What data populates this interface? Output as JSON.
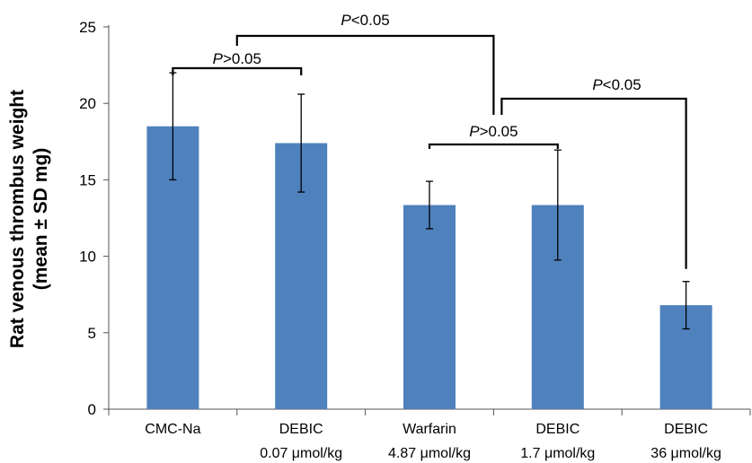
{
  "chart_data": {
    "type": "bar",
    "ylabel_line1": "Rat venous thrombus weight",
    "ylabel_line2": "(mean ± SD mg)",
    "ylim": [
      0,
      25
    ],
    "yticks": [
      0,
      5,
      10,
      15,
      20,
      25
    ],
    "grid": false,
    "bar_color": "#4f81bd",
    "categories": [
      {
        "line1": "CMC-Na",
        "line2": ""
      },
      {
        "line1": "DEBIC",
        "line2": "0.07 μmol/kg"
      },
      {
        "line1": "Warfarin",
        "line2": "4.87 μmol/kg"
      },
      {
        "line1": "DEBIC",
        "line2": "1.7 μmol/kg"
      },
      {
        "line1": "DEBIC",
        "line2": "36 μmol/kg"
      }
    ],
    "values": [
      18.5,
      17.4,
      13.35,
      13.35,
      6.8
    ],
    "errors": [
      3.5,
      3.2,
      1.55,
      3.6,
      1.55
    ],
    "comparisons": [
      {
        "from": 0,
        "to": 1,
        "p_symbol": "P",
        "p_relation": ">0.05"
      },
      {
        "from": 2,
        "to": 3,
        "p_symbol": "P",
        "p_relation": ">0.05"
      },
      {
        "from": "0-1",
        "to": "2-3",
        "p_symbol": "P",
        "p_relation": "<0.05"
      },
      {
        "from": "2-3",
        "to": 4,
        "p_symbol": "P",
        "p_relation": "<0.05"
      }
    ]
  }
}
